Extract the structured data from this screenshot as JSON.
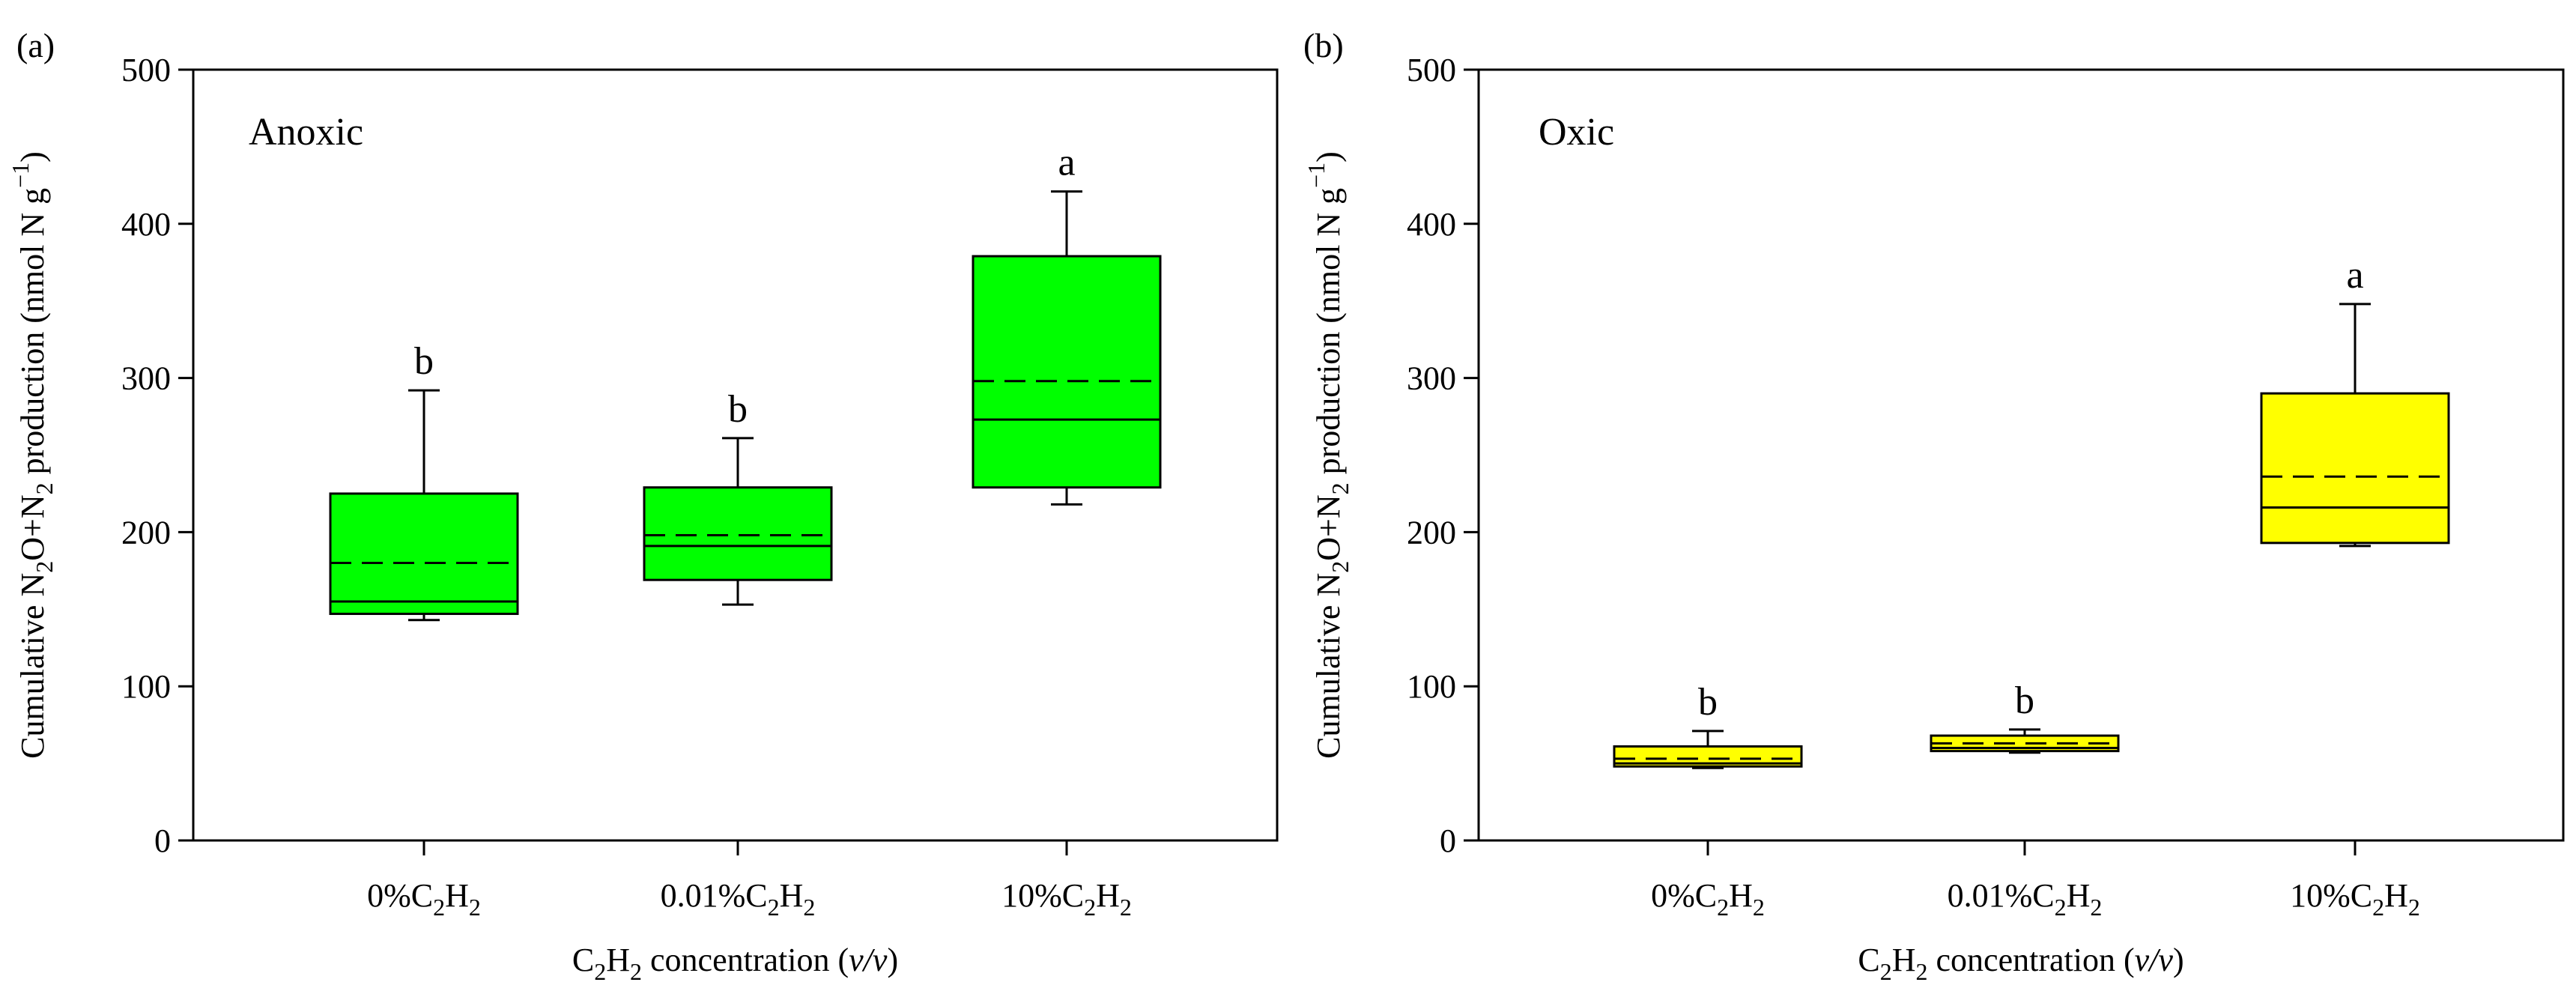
{
  "chart_data": [
    {
      "type": "box",
      "panel_label": "(a)",
      "condition": "Anoxic",
      "box_color": "#00FF00",
      "ylabel_parts": [
        "Cumulative N",
        "2",
        "O+N",
        "2",
        " production (nmol N g",
        "−1",
        ")"
      ],
      "xlabel_parts": [
        "C",
        "2",
        "H",
        "2",
        " concentration (",
        "v/v",
        ")"
      ],
      "ylim": [
        0,
        500
      ],
      "yticks": [
        "0",
        "100",
        "200",
        "300",
        "400",
        "500"
      ],
      "categories": [
        {
          "label": [
            "0%C",
            "2",
            "H",
            "2"
          ],
          "min": 143,
          "q1": 147,
          "median": 155,
          "mean": 180,
          "q3": 225,
          "max": 292,
          "letter": "b"
        },
        {
          "label": [
            "0.01%C",
            "2",
            "H",
            "2"
          ],
          "min": 153,
          "q1": 169,
          "median": 191,
          "mean": 198,
          "q3": 229,
          "max": 261,
          "letter": "b"
        },
        {
          "label": [
            "10%C",
            "2",
            "H",
            "2"
          ],
          "min": 218,
          "q1": 229,
          "median": 273,
          "mean": 298,
          "q3": 379,
          "max": 421,
          "letter": "a"
        }
      ]
    },
    {
      "type": "box",
      "panel_label": "(b)",
      "condition": "Oxic",
      "box_color": "#FFFF00",
      "ylabel_parts": [
        "Cumulative N",
        "2",
        "O+N",
        "2",
        " production (nmol N g",
        "−1",
        ")"
      ],
      "xlabel_parts": [
        "C",
        "2",
        "H",
        "2",
        " concentration (",
        "v/v",
        ")"
      ],
      "ylim": [
        0,
        500
      ],
      "yticks": [
        "0",
        "100",
        "200",
        "300",
        "400",
        "500"
      ],
      "categories": [
        {
          "label": [
            "0%C",
            "2",
            "H",
            "2"
          ],
          "min": 47,
          "q1": 48,
          "median": 50,
          "mean": 53,
          "q3": 61,
          "max": 71,
          "letter": "b"
        },
        {
          "label": [
            "0.01%C",
            "2",
            "H",
            "2"
          ],
          "min": 57,
          "q1": 58,
          "median": 60,
          "mean": 63,
          "q3": 68,
          "max": 72,
          "letter": "b"
        },
        {
          "label": [
            "10%C",
            "2",
            "H",
            "2"
          ],
          "min": 191,
          "q1": 193,
          "median": 216,
          "mean": 236,
          "q3": 290,
          "max": 348,
          "letter": "a"
        }
      ]
    }
  ]
}
